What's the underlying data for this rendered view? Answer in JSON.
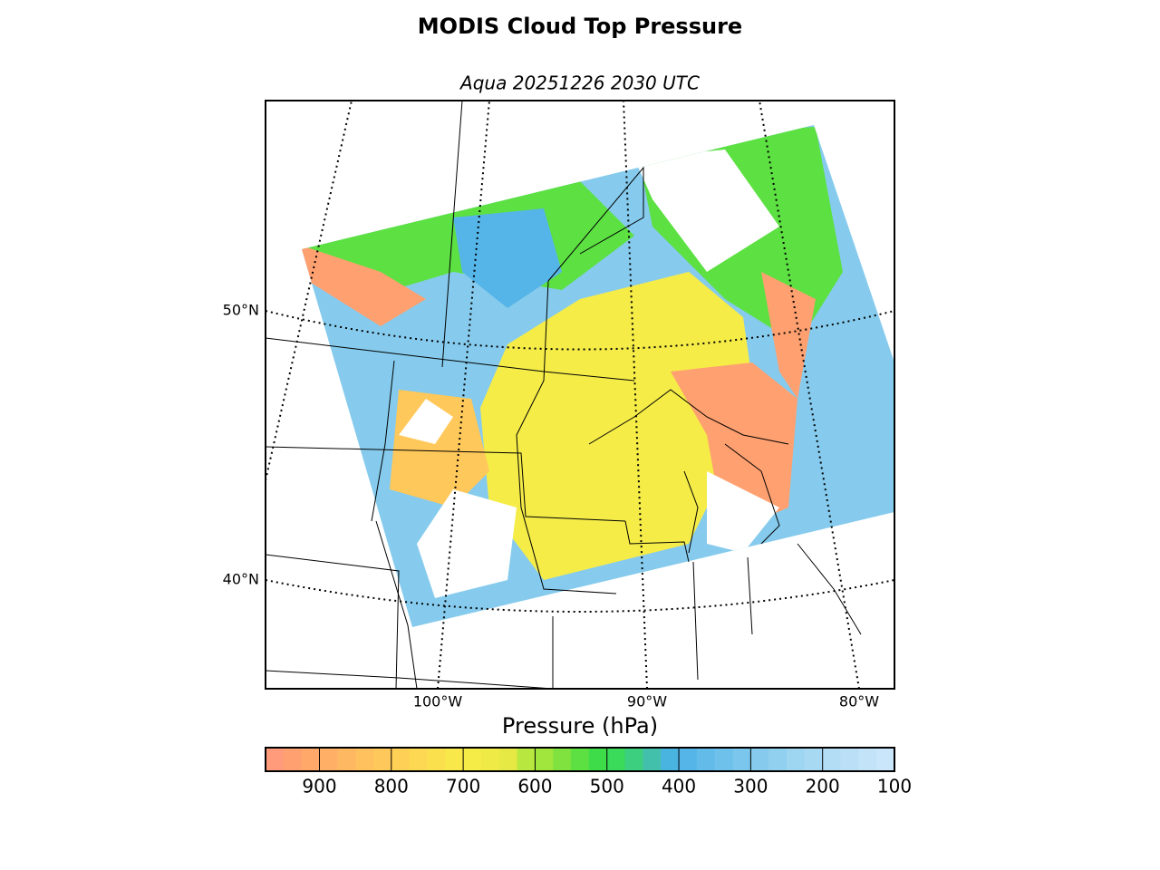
{
  "map": {
    "title": "MODIS Cloud Top Pressure",
    "subtitle": "Aqua 20251226 2030 UTC",
    "lat_labels": [
      "50°N",
      "40°N"
    ],
    "lon_labels": [
      "100°W",
      "90°W",
      "80°W"
    ]
  },
  "colorbar": {
    "label": "Pressure (hPa)",
    "lim": [
      975,
      100
    ],
    "ticks": [
      900,
      800,
      700,
      600,
      500,
      400,
      300,
      200,
      100
    ],
    "colors": [
      "#ff9a7a",
      "#ffa070",
      "#ffa86a",
      "#ffaf66",
      "#ffb862",
      "#ffc05e",
      "#ffc85a",
      "#ffd056",
      "#fdd852",
      "#fbe04e",
      "#f8e84a",
      "#f5ec48",
      "#f0ea46",
      "#e6e844",
      "#b8e840",
      "#a0e63c",
      "#7fe23e",
      "#5ce042",
      "#3ddc48",
      "#3ada5a",
      "#3ccf80",
      "#42c0ac",
      "#4ab4e0",
      "#55b5e8",
      "#62bbe9",
      "#6ec1ea",
      "#7ac6ec",
      "#86cbed",
      "#92d0ef",
      "#9ed5f0",
      "#a8d9f2",
      "#b2ddf4",
      "#badff6",
      "#c2e3f8",
      "#c9e6fb"
    ]
  }
}
